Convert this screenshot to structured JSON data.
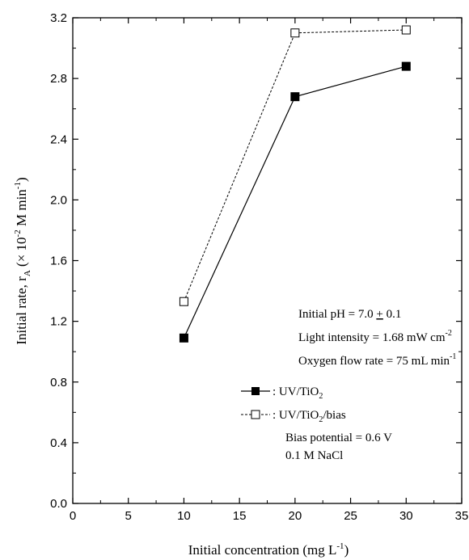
{
  "chart_data": {
    "type": "line",
    "xlabel": {
      "main": "Initial concentration (mg L",
      "sup": "-1",
      "end": ")"
    },
    "ylabel": {
      "main": "Initial rate, r",
      "sub": "A",
      "mid": " (× 10",
      "sup1": "-2",
      "mid2": " M min",
      "sup2": "-1",
      "end": ")"
    },
    "xlim": [
      0,
      35
    ],
    "ylim": [
      0,
      3.2
    ],
    "xticks": [
      "0",
      "5",
      "10",
      "15",
      "20",
      "25",
      "30",
      "35"
    ],
    "yticks": [
      "0.0",
      "0.4",
      "0.8",
      "1.2",
      "1.6",
      "2.0",
      "2.4",
      "2.8",
      "3.2"
    ],
    "grid": false,
    "series": [
      {
        "name": ": UV/TiO",
        "name_sub": "2",
        "marker": "filled-square",
        "line": "solid",
        "color": "#000000",
        "x": [
          10,
          20,
          30
        ],
        "y": [
          1.09,
          2.68,
          2.88
        ]
      },
      {
        "name": ": UV/TiO",
        "name_sub": "2",
        "name_end": "/bias",
        "marker": "open-square",
        "line": "dashed",
        "color": "#000000",
        "x": [
          10,
          20,
          30
        ],
        "y": [
          1.33,
          3.1,
          3.12
        ]
      }
    ],
    "annotations": {
      "ph": {
        "pre": "Initial pH = 7.0 ",
        "pm": "+",
        "post": " 0.1"
      },
      "light": {
        "pre": "Light intensity = 1.68 mW cm",
        "sup": "-2"
      },
      "oxygen": {
        "pre": "Oxygen flow rate = 75 mL min",
        "sup": "-1"
      },
      "bias": "Bias potential = 0.6 V",
      "nacl": "0.1 M NaCl"
    }
  }
}
